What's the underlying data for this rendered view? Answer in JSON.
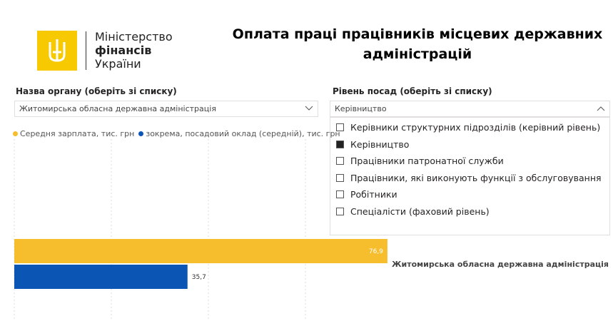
{
  "header": {
    "logo": {
      "line1": "Міністерство",
      "line2": "фінансів",
      "line3": "України"
    },
    "title": "Оплата праці працівників місцевих державних адміністрацій"
  },
  "filters": {
    "organ": {
      "label": "Назва органу (оберіть зі списку)",
      "value": "Житомирська обласна державна адміністрація"
    },
    "level": {
      "label": "Рівень посад (оберіть зі списку)",
      "value": "Керівництво",
      "options": [
        {
          "label": "Керівники структурних підрозділів (керівний рівень)",
          "checked": false
        },
        {
          "label": "Керівництво",
          "checked": true
        },
        {
          "label": "Працівники патронатної служби",
          "checked": false
        },
        {
          "label": "Працівники, які виконують функції з обслуговування",
          "checked": false
        },
        {
          "label": "Робітники",
          "checked": false
        },
        {
          "label": "Спеціалісти (фаховий рівень)",
          "checked": false
        }
      ]
    }
  },
  "chart_data": {
    "type": "hbar",
    "categories": [
      "Житомирська обласна державна адміністрація"
    ],
    "series": [
      {
        "name": "Середня зарплата, тис. грн",
        "color": "#f6be2c",
        "values": [
          76.9
        ],
        "value_labels": [
          "76,9"
        ]
      },
      {
        "name": "зокрема, посадовий оклад (середній), тис. грн",
        "color": "#0b55b5",
        "values": [
          35.7
        ],
        "value_labels": [
          "35,7"
        ]
      }
    ],
    "xlim": [
      0,
      80
    ]
  }
}
